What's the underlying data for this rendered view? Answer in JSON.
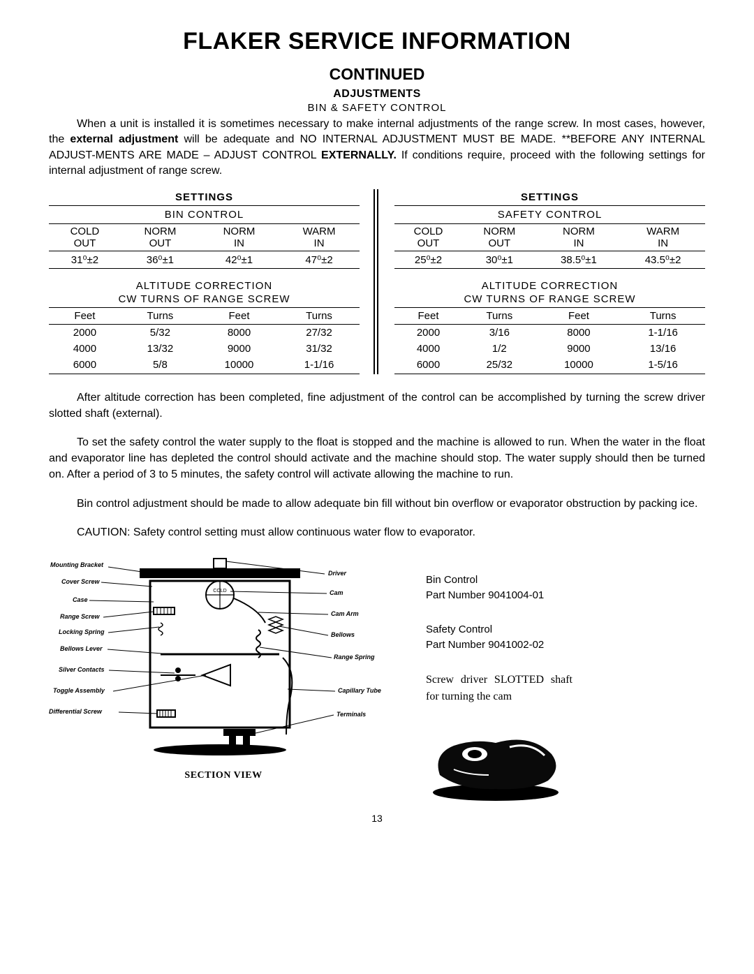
{
  "title": "FLAKER SERVICE INFORMATION",
  "continued": "CONTINUED",
  "adjustments": "ADJUSTMENTS",
  "binsafety": "BIN & SAFETY CONTROL",
  "intro_html": "When a unit is installed it is sometimes necessary to make internal adjustments of the range screw. In most cases, however, the <b>external adjustment</b> will be adequate and NO INTERNAL ADJUSTMENT MUST BE MADE. **BEFORE ANY INTERNAL ADJUST-MENTS ARE MADE – ADJUST CONTROL <b>EXTERNALLY.</b> If conditions require, proceed with the following settings for internal adjustment of range screw.",
  "settings_label": "SETTINGS",
  "bin_control_label": "BIN CONTROL",
  "safety_control_label": "SAFETY CONTROL",
  "colheads": {
    "cold_out": "COLD OUT",
    "norm_out": "NORM OUT",
    "norm_in": "NORM IN",
    "warm_in": "WARM IN"
  },
  "bin_values": {
    "cold_out": "31⁰±2",
    "norm_out": "36⁰±1",
    "norm_in": "42⁰±1",
    "warm_in": "47⁰±2"
  },
  "safety_values": {
    "cold_out": "25⁰±2",
    "norm_out": "30⁰±1",
    "norm_in": "38.5⁰±1",
    "warm_in": "43.5⁰±2"
  },
  "alt_correction_label": "ALTITUDE CORRECTION",
  "cw_turns_label": "CW TURNS OF RANGE SCREW",
  "feet_label": "Feet",
  "turns_label": "Turns",
  "bin_alt": [
    {
      "f1": "2000",
      "t1": "5/32",
      "f2": "8000",
      "t2": "27/32"
    },
    {
      "f1": "4000",
      "t1": "13/32",
      "f2": "9000",
      "t2": "31/32"
    },
    {
      "f1": "6000",
      "t1": "5/8",
      "f2": "10000",
      "t2": "1-1/16"
    }
  ],
  "safety_alt": [
    {
      "f1": "2000",
      "t1": "3/16",
      "f2": "8000",
      "t2": "1-1/16"
    },
    {
      "f1": "4000",
      "t1": "1/2",
      "f2": "9000",
      "t2": "13/16"
    },
    {
      "f1": "6000",
      "t1": "25/32",
      "f2": "10000",
      "t2": "1-5/16"
    }
  ],
  "para1": "After altitude correction has been completed, fine adjustment of the control can be accomplished by turning the screw driver slotted shaft (external).",
  "para2": "To set the safety control the water supply to the float is stopped and the machine is allowed to run. When the water in the float and evaporator line has depleted the control should activate and the machine should stop. The water supply should then be turned on. After a period of 3 to 5 minutes, the safety control will activate allowing the machine to run.",
  "para3": "Bin control adjustment should be made to allow adequate bin fill without bin overflow or evaporator obstruction by packing ice.",
  "caution": "CAUTION: Safety control setting must allow continuous water flow to evaporator.",
  "diag_labels": {
    "mounting_bracket": "Mounting Bracket",
    "cover_screw": "Cover Screw",
    "case": "Case",
    "range_screw": "Range Screw",
    "locking_spring": "Locking Spring",
    "bellows_lever": "Bellows Lever",
    "silver_contacts": "Silver Contacts",
    "toggle_assembly": "Toggle Assembly",
    "differential_screw": "Differential Screw",
    "driver": "Driver",
    "cam": "Cam",
    "cam_arm": "Cam Arm",
    "bellows": "Bellows",
    "range_spring": "Range Spring",
    "capillary_tube": "Capillary Tube",
    "terminals": "Terminals"
  },
  "section_view": "SECTION VIEW",
  "info": {
    "bin_control": "Bin Control",
    "bin_part": "Part Number 9041004-01",
    "safety_control": "Safety Control",
    "safety_part": "Part Number 9041002-02",
    "screw_note": "Screw driver SLOTTED shaft for turning the cam"
  },
  "pagenum": "13"
}
